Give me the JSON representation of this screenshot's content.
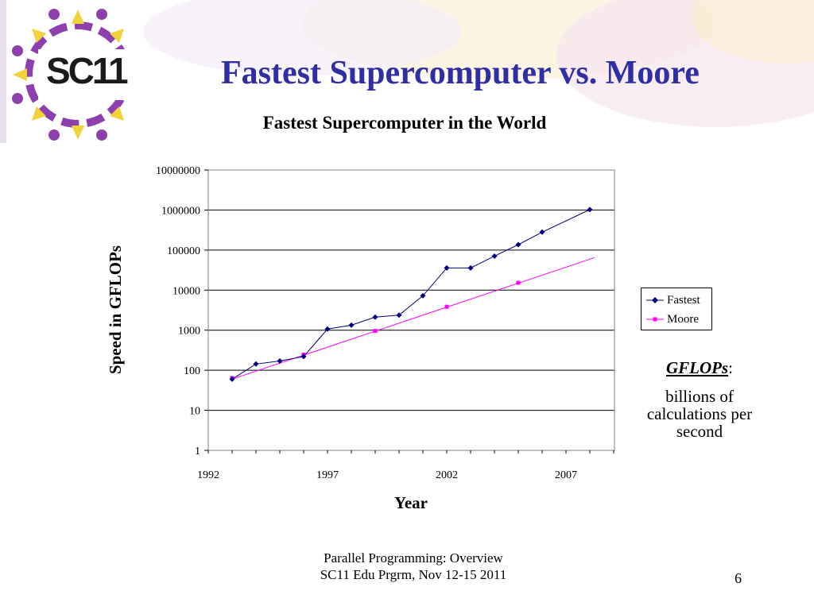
{
  "slide": {
    "title": "Fastest Supercomputer vs. Moore",
    "logo_text": "SC11",
    "footer_line1": "Parallel Programming: Overview",
    "footer_line2": "SC11 Edu Prgrm, Nov 12-15 2011",
    "page_number": "6"
  },
  "note": {
    "term": "GFLOPs",
    "colon": ":",
    "definition": "billions of calculations per second"
  },
  "colors": {
    "title": "#2f2fa3",
    "fastest": "#000080",
    "moore": "#ff00ff",
    "logo_purple": "#8e3fae",
    "logo_yellow": "#f2d23a"
  },
  "chart_data": {
    "type": "line",
    "title": "Fastest Supercomputer in the World",
    "xlabel": "Year",
    "ylabel": "Speed in GFLOPs",
    "xlim": [
      1992,
      2009
    ],
    "ylim": [
      1,
      10000000
    ],
    "y_scale": "log",
    "x_ticks": [
      1992,
      1997,
      2002,
      2007
    ],
    "y_ticks": [
      1,
      10,
      100,
      1000,
      10000,
      100000,
      1000000,
      10000000
    ],
    "y_tick_labels": [
      "1",
      "10",
      "100",
      "1000",
      "10000",
      "100000",
      "1000000",
      "10000000"
    ],
    "grid": "horizontal",
    "legend": "right",
    "series": [
      {
        "name": "Fastest",
        "marker": "diamond",
        "x": [
          1993,
          1994,
          1995,
          1996,
          1997,
          1998,
          1999,
          2000,
          2001,
          2002,
          2003,
          2004,
          2005,
          2006,
          2008
        ],
        "y": [
          60,
          143,
          170,
          220,
          1068,
          1338,
          2121,
          2379,
          7226,
          35860,
          35860,
          70720,
          136800,
          280600,
          1026000
        ]
      },
      {
        "name": "Moore",
        "marker": "square",
        "trend_line": [
          [
            1993,
            60
          ],
          [
            2008.2,
            65000
          ]
        ],
        "x": [
          1993,
          1996,
          1999,
          2002,
          2005
        ],
        "y": [
          64,
          245,
          960,
          3850,
          15300
        ]
      }
    ]
  }
}
